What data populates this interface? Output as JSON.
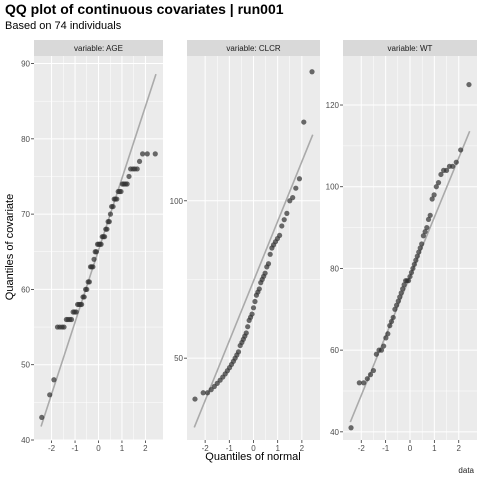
{
  "title": "QQ plot of continuous covariates | run001",
  "subtitle": "Based on 74 individuals",
  "xlabel": "Quantiles of normal",
  "ylabel": "Quantiles of covariate",
  "caption": "data",
  "colors": {
    "panel_bg": "#ebebeb",
    "strip_bg": "#d9d9d9",
    "grid": "#ffffff",
    "point": "#333333",
    "line": "#aaaaaa"
  },
  "chart_data": [
    {
      "type": "scatter",
      "strip": "variable: AGE",
      "xlim": [
        -2.75,
        2.75
      ],
      "ylim": [
        40,
        91
      ],
      "xticks": [
        -2,
        -1,
        0,
        1,
        2
      ],
      "yticks": [
        40,
        50,
        60,
        70,
        80,
        90
      ],
      "reference_line": {
        "x": [
          -2.45,
          2.45
        ],
        "y": [
          41.8,
          88.6
        ]
      },
      "points": {
        "x": [
          -2.42,
          -2.08,
          -1.9,
          -1.75,
          -1.65,
          -1.55,
          -1.47,
          -1.37,
          -1.3,
          -1.22,
          -1.15,
          -1.08,
          -1.02,
          -0.95,
          -0.89,
          -0.83,
          -0.77,
          -0.72,
          -0.66,
          -0.61,
          -0.55,
          -0.5,
          -0.44,
          -0.39,
          -0.34,
          -0.29,
          -0.24,
          -0.19,
          -0.14,
          -0.09,
          -0.04,
          0.01,
          0.06,
          0.11,
          0.16,
          0.21,
          0.26,
          0.31,
          0.36,
          0.41,
          0.46,
          0.51,
          0.56,
          0.62,
          0.67,
          0.72,
          0.78,
          0.84,
          0.9,
          0.96,
          1.02,
          1.08,
          1.15,
          1.22,
          1.3,
          1.37,
          1.47,
          1.55,
          1.65,
          1.75,
          1.88,
          2.08,
          2.42
        ],
        "y": [
          43,
          46,
          48,
          55,
          55,
          55,
          55,
          56,
          56,
          56,
          56,
          57,
          57,
          57,
          58,
          58,
          58,
          58,
          59,
          59,
          60,
          60,
          61,
          61,
          63,
          63,
          63,
          64,
          65,
          65,
          66,
          66,
          66,
          66,
          67,
          67,
          67,
          68,
          68,
          69,
          69,
          70,
          71,
          71,
          72,
          72,
          72,
          73,
          73,
          73,
          74,
          74,
          74,
          74,
          75,
          76,
          76,
          76,
          76,
          77,
          78,
          78,
          78
        ]
      }
    },
    {
      "type": "scatter",
      "strip": "variable: CLCR",
      "xlim": [
        -2.75,
        2.75
      ],
      "ylim": [
        24,
        146
      ],
      "xticks": [
        -2,
        -1,
        0,
        1,
        2
      ],
      "yticks": [
        50,
        100
      ],
      "reference_line": {
        "x": [
          -2.45,
          2.45
        ],
        "y": [
          28.0,
          121.0
        ]
      },
      "points": {
        "x": [
          -2.42,
          -2.08,
          -1.9,
          -1.75,
          -1.62,
          -1.5,
          -1.38,
          -1.27,
          -1.17,
          -1.08,
          -0.99,
          -0.91,
          -0.83,
          -0.76,
          -0.69,
          -0.62,
          -0.55,
          -0.48,
          -0.42,
          -0.36,
          -0.3,
          -0.24,
          -0.18,
          -0.12,
          -0.06,
          0.0,
          0.06,
          0.12,
          0.18,
          0.24,
          0.3,
          0.36,
          0.42,
          0.48,
          0.55,
          0.62,
          0.69,
          0.76,
          0.83,
          0.91,
          0.99,
          1.08,
          1.17,
          1.27,
          1.38,
          1.5,
          1.62,
          1.75,
          1.9,
          2.08,
          2.42
        ],
        "y": [
          37,
          39,
          39,
          40,
          41,
          42,
          43,
          44,
          45,
          46,
          47,
          48,
          49,
          50,
          51,
          52,
          54,
          55,
          56,
          57,
          58,
          60,
          62,
          63,
          64,
          66,
          68,
          70,
          71,
          72,
          74,
          75,
          76,
          77,
          79,
          80,
          83,
          85,
          86,
          87,
          88,
          89,
          92,
          94,
          96,
          100,
          101,
          104,
          107,
          125,
          141
        ]
      }
    },
    {
      "type": "scatter",
      "strip": "variable: WT",
      "xlim": [
        -2.75,
        2.75
      ],
      "ylim": [
        38,
        132
      ],
      "xticks": [
        -2,
        -1,
        0,
        1,
        2
      ],
      "yticks": [
        40,
        60,
        80,
        100,
        120
      ],
      "reference_line": {
        "x": [
          -2.45,
          2.45
        ],
        "y": [
          42.4,
          113.6
        ]
      },
      "points": {
        "x": [
          -2.42,
          -2.08,
          -1.9,
          -1.75,
          -1.62,
          -1.5,
          -1.38,
          -1.27,
          -1.17,
          -1.08,
          -0.99,
          -0.91,
          -0.83,
          -0.76,
          -0.69,
          -0.62,
          -0.55,
          -0.48,
          -0.42,
          -0.36,
          -0.3,
          -0.24,
          -0.18,
          -0.12,
          -0.06,
          0.0,
          0.06,
          0.12,
          0.18,
          0.24,
          0.3,
          0.36,
          0.42,
          0.48,
          0.55,
          0.62,
          0.69,
          0.76,
          0.83,
          0.91,
          0.99,
          1.08,
          1.17,
          1.27,
          1.38,
          1.5,
          1.62,
          1.75,
          1.9,
          2.08,
          2.42
        ],
        "y": [
          41,
          52,
          52,
          53,
          54,
          55,
          59,
          60,
          60,
          61,
          63,
          64,
          66,
          67,
          68,
          70,
          71,
          72,
          73,
          74,
          75,
          76,
          77,
          77,
          77,
          78,
          79,
          80,
          81,
          82,
          83,
          84,
          85,
          86,
          88,
          89,
          90,
          92,
          93,
          97,
          98,
          100,
          101,
          103,
          104,
          104,
          105,
          105,
          106,
          109,
          125
        ]
      }
    }
  ]
}
